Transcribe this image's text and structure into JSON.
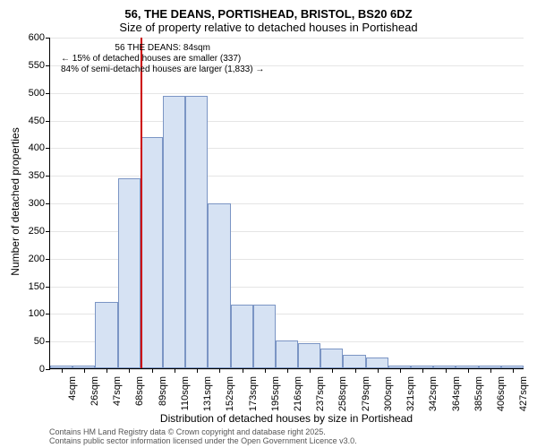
{
  "chart": {
    "type": "histogram",
    "title_line1": "56, THE DEANS, PORTISHEAD, BRISTOL, BS20 6DZ",
    "title_line2": "Size of property relative to detached houses in Portishead",
    "xlabel": "Distribution of detached houses by size in Portishead",
    "ylabel": "Number of detached properties",
    "y_max": 600,
    "y_ticks": [
      0,
      50,
      100,
      150,
      200,
      250,
      300,
      350,
      400,
      450,
      500,
      550,
      600
    ],
    "x_ticks": [
      "4sqm",
      "26sqm",
      "47sqm",
      "68sqm",
      "89sqm",
      "110sqm",
      "131sqm",
      "152sqm",
      "173sqm",
      "195sqm",
      "216sqm",
      "237sqm",
      "258sqm",
      "279sqm",
      "300sqm",
      "321sqm",
      "342sqm",
      "364sqm",
      "385sqm",
      "406sqm",
      "427sqm"
    ],
    "bar_values": [
      5,
      5,
      120,
      345,
      420,
      495,
      495,
      300,
      115,
      115,
      50,
      45,
      35,
      25,
      20,
      5,
      5,
      5,
      5,
      5,
      5
    ],
    "bar_fill": "#d6e2f3",
    "bar_stroke": "#7b95c4",
    "grid_color": "#e5e5e5",
    "background_color": "#ffffff",
    "refline_color": "#cc0000",
    "refline_at_index": 4,
    "annotation": {
      "line1": "56 THE DEANS: 84sqm",
      "line2": "← 15% of detached houses are smaller (337)",
      "line3": "84% of semi-detached houses are larger (1,833) →"
    },
    "footer_line1": "Contains HM Land Registry data © Crown copyright and database right 2025.",
    "footer_line2": "Contains public sector information licensed under the Open Government Licence v3.0."
  }
}
